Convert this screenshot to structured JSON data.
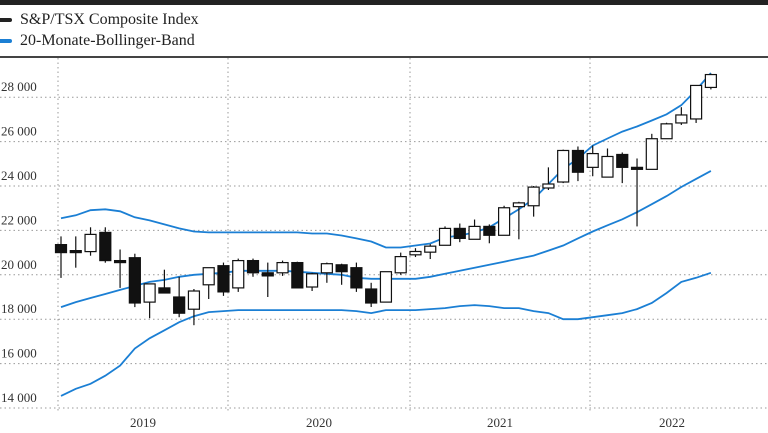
{
  "legend": {
    "index_label": "S&P/TSX Composite Index",
    "band_label": "20-Monate-Bollinger-Band"
  },
  "colors": {
    "band": "#1b7fd4",
    "candle": "#111111",
    "grid": "#999999"
  },
  "chart_data": {
    "type": "candlestick",
    "title": "",
    "ylim": [
      14000,
      29000
    ],
    "yticks": [
      14000,
      16000,
      18000,
      20000,
      22000,
      24000,
      26000,
      28000
    ],
    "ytick_labels": [
      "14 000",
      "16 000",
      "18 000",
      "20 000",
      "22 000",
      "24 000",
      "26 000",
      "28 000"
    ],
    "xtick_labels": [
      "2019",
      "2020",
      "2021",
      "2022"
    ],
    "grid": true,
    "legend_position": "top-left",
    "x_start": "2019-01",
    "interval": "month",
    "ohlc": [
      [
        21360,
        21730,
        19860,
        21000
      ],
      [
        21090,
        21730,
        20320,
        21000
      ],
      [
        21045,
        22140,
        20860,
        21820
      ],
      [
        21910,
        22140,
        20545,
        20640
      ],
      [
        20640,
        21140,
        19410,
        20590
      ],
      [
        20770,
        20950,
        18545,
        18730
      ],
      [
        18770,
        19590,
        18045,
        19590
      ],
      [
        19410,
        20230,
        19180,
        19180
      ],
      [
        19000,
        19910,
        18090,
        18270
      ],
      [
        18450,
        19360,
        17730,
        19270
      ],
      [
        19550,
        20320,
        18910,
        20320
      ],
      [
        20410,
        20550,
        19050,
        19230
      ],
      [
        19410,
        20730,
        19230,
        20640
      ],
      [
        20640,
        20730,
        19910,
        20090
      ],
      [
        20090,
        20550,
        19000,
        19950
      ],
      [
        20090,
        20640,
        19950,
        20550
      ],
      [
        20550,
        20590,
        19410,
        19410
      ],
      [
        19450,
        20090,
        19270,
        20045
      ],
      [
        20090,
        20550,
        19640,
        20500
      ],
      [
        20450,
        20500,
        19550,
        20140
      ],
      [
        20320,
        20550,
        19230,
        19410
      ],
      [
        19360,
        19640,
        18550,
        18730
      ],
      [
        18770,
        20140,
        18770,
        20140
      ],
      [
        20090,
        21000,
        20000,
        20820
      ],
      [
        20900,
        21200,
        20800,
        21050
      ],
      [
        21020,
        21380,
        20710,
        21290
      ],
      [
        21330,
        22180,
        21330,
        22090
      ],
      [
        22090,
        22310,
        21470,
        21640
      ],
      [
        21600,
        22490,
        21600,
        22180
      ],
      [
        22180,
        22270,
        21420,
        21780
      ],
      [
        21780,
        23110,
        21780,
        23020
      ],
      [
        23070,
        23290,
        21600,
        23240
      ],
      [
        23110,
        24000,
        22620,
        23950
      ],
      [
        23910,
        24840,
        23820,
        24090
      ],
      [
        24180,
        25640,
        24130,
        25600
      ],
      [
        25600,
        25780,
        24220,
        24620
      ],
      [
        24840,
        25820,
        24440,
        25460
      ],
      [
        24400,
        25690,
        24400,
        25330
      ],
      [
        25420,
        25510,
        24130,
        24840
      ],
      [
        24840,
        25240,
        22180,
        24750
      ],
      [
        24750,
        26350,
        24750,
        26130
      ],
      [
        26130,
        26850,
        26130,
        26800
      ],
      [
        26840,
        27550,
        26750,
        27200
      ],
      [
        27020,
        28530,
        26840,
        28530
      ],
      [
        28440,
        29060,
        28350,
        29020
      ]
    ],
    "bollinger": {
      "upper": [
        22545,
        22680,
        22910,
        22950,
        22860,
        22590,
        22450,
        22270,
        22090,
        21950,
        21910,
        21910,
        21910,
        21910,
        21910,
        21910,
        21910,
        21860,
        21860,
        21770,
        21640,
        21500,
        21230,
        21230,
        21320,
        21410,
        21680,
        21770,
        21910,
        22140,
        22545,
        22950,
        23410,
        24090,
        24770,
        25230,
        25820,
        26140,
        26450,
        26680,
        26950,
        27230,
        27640,
        28320,
        29090
      ],
      "middle": [
        18545,
        18770,
        18955,
        19135,
        19320,
        19500,
        19680,
        19770,
        19910,
        20000,
        20045,
        20090,
        20180,
        20180,
        20180,
        20180,
        20140,
        20090,
        20045,
        20000,
        19865,
        19820,
        19820,
        19820,
        19820,
        19910,
        20045,
        20180,
        20320,
        20455,
        20590,
        20730,
        20865,
        21090,
        21320,
        21640,
        21950,
        22230,
        22500,
        22820,
        23180,
        23545,
        23955,
        24320,
        24680
      ],
      "lower": [
        14545,
        14865,
        15090,
        15455,
        15910,
        16680,
        17140,
        17500,
        17865,
        18135,
        18320,
        18365,
        18410,
        18410,
        18410,
        18410,
        18410,
        18410,
        18410,
        18410,
        18365,
        18275,
        18410,
        18410,
        18410,
        18455,
        18500,
        18590,
        18635,
        18590,
        18500,
        18500,
        18365,
        18275,
        18000,
        18000,
        18090,
        18180,
        18275,
        18455,
        18730,
        19180,
        19680,
        19865,
        20090
      ]
    }
  }
}
